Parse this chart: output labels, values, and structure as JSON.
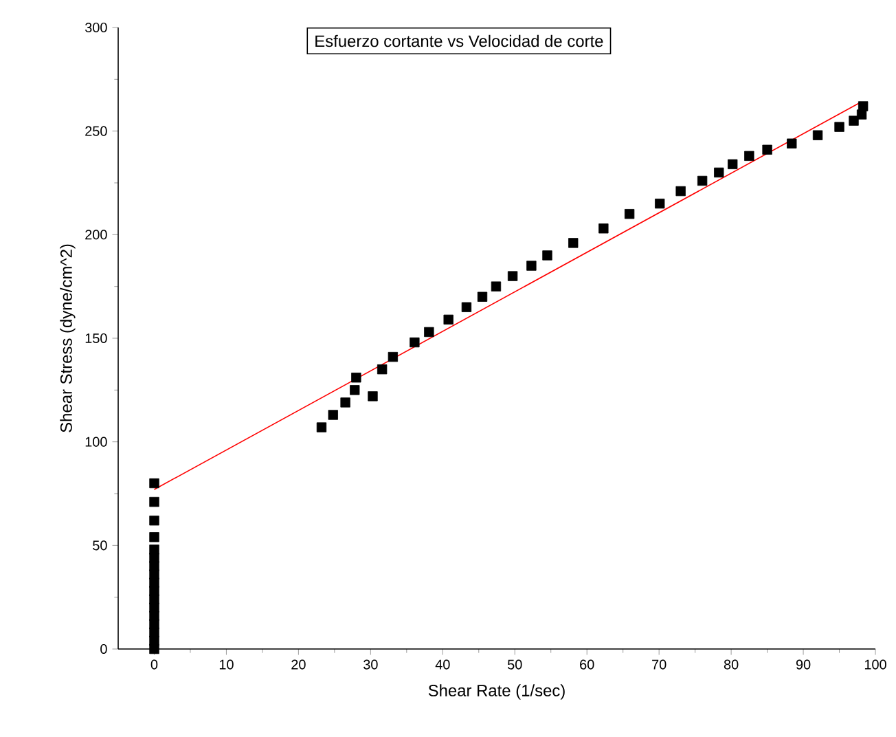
{
  "chart_data": {
    "type": "scatter",
    "title": "Esfuerzo cortante vs Velocidad de corte",
    "xlabel": "Shear Rate (1/sec)",
    "ylabel": "Shear Stress (dyne/cm^2)",
    "xlim": [
      -5,
      100
    ],
    "xticks": [
      0,
      10,
      20,
      30,
      40,
      50,
      60,
      70,
      80,
      90,
      100
    ],
    "ylim": [
      0,
      300
    ],
    "yticks": [
      0,
      50,
      100,
      150,
      200,
      250,
      300
    ],
    "marker": "square",
    "series": [
      {
        "color": "#000000",
        "x": [
          0,
          0,
          0,
          0,
          0,
          0,
          0,
          0,
          0,
          0,
          0,
          0,
          0,
          0,
          0,
          0,
          0,
          23.2,
          24.8,
          26.5,
          27.8,
          28.0,
          30.3,
          31.6,
          33.1,
          36.1,
          38.1,
          40.8,
          43.3,
          45.5,
          47.4,
          49.7,
          52.3,
          54.5,
          58.1,
          62.3,
          65.9,
          70.1,
          73.0,
          76.0,
          78.3,
          80.2,
          82.5,
          85.0,
          88.4,
          92.0,
          95.0,
          97.0,
          98.1,
          98.3
        ],
        "values": [
          0,
          4,
          8,
          12,
          16,
          20,
          24,
          28,
          32,
          36,
          40,
          44,
          48,
          54,
          62,
          71,
          80,
          107,
          113,
          119,
          125,
          131,
          122,
          135,
          141,
          148,
          153,
          159,
          165,
          170,
          175,
          180,
          185,
          190,
          196,
          203,
          210,
          215,
          221,
          226,
          230,
          234,
          238,
          241,
          244,
          248,
          252,
          255,
          258,
          262
        ]
      },
      {
        "type": "line",
        "color": "#ff0000",
        "marker": "none",
        "x": [
          0,
          98
        ],
        "values": [
          77,
          264
        ]
      }
    ]
  }
}
